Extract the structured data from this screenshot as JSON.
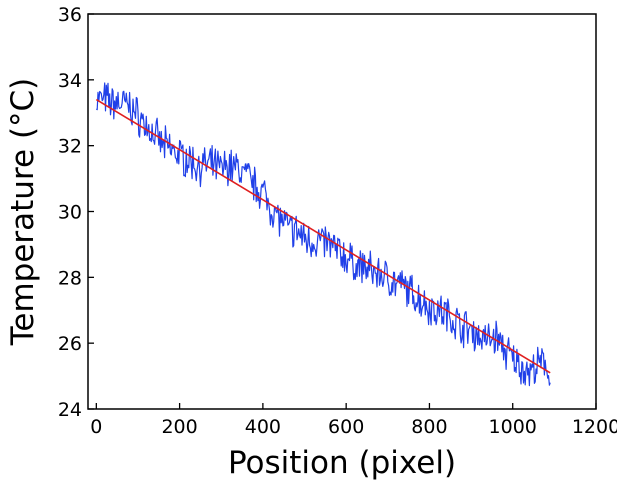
{
  "chart_data": {
    "type": "line",
    "title": "",
    "xlabel": "Position (pixel)",
    "ylabel": "Temperature (°C)",
    "xlim": [
      -20,
      1200
    ],
    "ylim": [
      24,
      36
    ],
    "x_ticks": [
      0,
      200,
      400,
      600,
      800,
      1000,
      1200
    ],
    "y_ticks": [
      24,
      26,
      28,
      30,
      32,
      34,
      36
    ],
    "grid": false,
    "legend": "none",
    "series": [
      {
        "kind": "measured",
        "color": "#2040e8",
        "x": [
          0,
          20,
          40,
          60,
          80,
          100,
          120,
          140,
          160,
          180,
          200,
          220,
          240,
          260,
          280,
          300,
          320,
          340,
          360,
          380,
          400,
          420,
          440,
          460,
          480,
          500,
          520,
          540,
          560,
          580,
          600,
          620,
          640,
          660,
          680,
          700,
          720,
          740,
          760,
          780,
          800,
          820,
          840,
          860,
          880,
          900,
          920,
          940,
          960,
          980,
          1000,
          1020,
          1040,
          1060,
          1080,
          1090
        ],
        "y": [
          33.4,
          33.4,
          33.3,
          33.3,
          33.2,
          32.9,
          32.6,
          32.3,
          32.0,
          31.9,
          31.7,
          31.6,
          31.4,
          31.4,
          31.4,
          31.3,
          31.4,
          31.3,
          31.1,
          30.8,
          30.6,
          30.1,
          29.8,
          29.5,
          29.4,
          29.2,
          29.1,
          29.1,
          29.0,
          28.8,
          28.6,
          28.4,
          28.3,
          28.2,
          28.1,
          28.0,
          27.8,
          27.7,
          27.5,
          27.3,
          27.1,
          27.0,
          26.9,
          26.7,
          26.5,
          26.4,
          26.2,
          26.1,
          26.2,
          25.8,
          25.5,
          25.3,
          25.1,
          25.3,
          25.4,
          24.8
        ]
      },
      {
        "kind": "linear-fit",
        "color": "#e02020",
        "x": [
          0,
          1090
        ],
        "y": [
          33.4,
          25.1
        ]
      }
    ]
  }
}
